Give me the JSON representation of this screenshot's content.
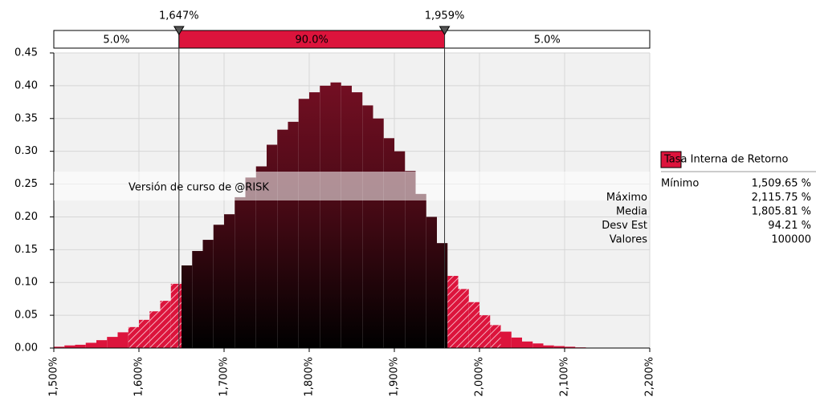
{
  "chart_data": {
    "type": "histogram",
    "bins": [
      1500,
      1512.5,
      1525,
      1537.5,
      1550,
      1562.5,
      1575,
      1587.5,
      1600,
      1612.5,
      1625,
      1637.5,
      1650,
      1662.5,
      1675,
      1687.5,
      1700,
      1712.5,
      1725,
      1737.5,
      1750,
      1762.5,
      1775,
      1787.5,
      1800,
      1812.5,
      1825,
      1837.5,
      1850,
      1862.5,
      1875,
      1887.5,
      1900,
      1912.5,
      1925,
      1937.5,
      1950,
      1962.5,
      1975,
      1987.5,
      2000,
      2012.5,
      2025,
      2037.5,
      2050,
      2062.5,
      2075,
      2087.5,
      2100,
      2112.5,
      2125
    ],
    "values": [
      0.002,
      0.004,
      0.005,
      0.008,
      0.012,
      0.017,
      0.024,
      0.032,
      0.043,
      0.056,
      0.072,
      0.098,
      0.126,
      0.148,
      0.165,
      0.188,
      0.204,
      0.23,
      0.26,
      0.277,
      0.31,
      0.333,
      0.345,
      0.38,
      0.39,
      0.4,
      0.405,
      0.4,
      0.39,
      0.37,
      0.35,
      0.32,
      0.3,
      0.27,
      0.235,
      0.2,
      0.16,
      0.11,
      0.09,
      0.07,
      0.05,
      0.035,
      0.025,
      0.016,
      0.01,
      0.007,
      0.004,
      0.003,
      0.002,
      0.001
    ],
    "color": "#dc143c",
    "xlim": [
      1500,
      2200
    ],
    "xticks": [
      {
        "value": 1500,
        "label": "1,500%"
      },
      {
        "value": 1600,
        "label": "1,600%"
      },
      {
        "value": 1700,
        "label": "1,700%"
      },
      {
        "value": 1800,
        "label": "1,800%"
      },
      {
        "value": 1900,
        "label": "1,900%"
      },
      {
        "value": 2000,
        "label": "2,000%"
      },
      {
        "value": 2100,
        "label": "2,100%"
      },
      {
        "value": 2200,
        "label": "2,200%"
      }
    ],
    "ylim": [
      0,
      0.45
    ],
    "yticks": [
      {
        "value": 0,
        "label": "0.00"
      },
      {
        "value": 0.05,
        "label": "0.05"
      },
      {
        "value": 0.1,
        "label": "0.10"
      },
      {
        "value": 0.15,
        "label": "0.15"
      },
      {
        "value": 0.2,
        "label": "0.20"
      },
      {
        "value": 0.25,
        "label": "0.25"
      },
      {
        "value": 0.3,
        "label": "0.30"
      },
      {
        "value": 0.35,
        "label": "0.35"
      },
      {
        "value": 0.4,
        "label": "0.40"
      },
      {
        "value": 0.45,
        "label": "0.45"
      }
    ],
    "grid": true,
    "delimiters": [
      {
        "value": 1647,
        "label": "1,647%"
      },
      {
        "value": 1959,
        "label": "1,959%"
      }
    ],
    "region_percents": [
      {
        "value": 5,
        "label": "5.0%"
      },
      {
        "value": 90,
        "label": "90.0%"
      },
      {
        "value": 5,
        "label": "5.0%"
      }
    ],
    "watermark": "Versión de curso de @RISK",
    "legend": "Tasa Interna de Retorno",
    "stats": [
      [
        "Mínimo",
        "1,509.65 %"
      ],
      [
        "Máximo",
        "2,115.75 %"
      ],
      [
        "Media",
        "1,805.81 %"
      ],
      [
        "Desv Est",
        "94.21 %"
      ],
      [
        "Valores",
        "100000"
      ]
    ]
  }
}
